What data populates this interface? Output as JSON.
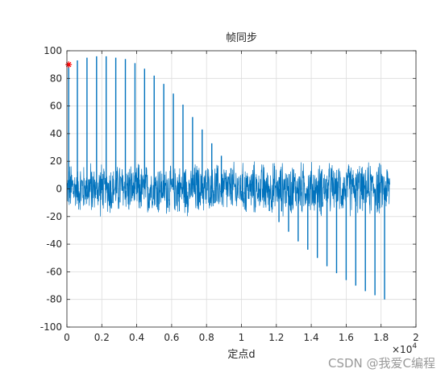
{
  "chart_data": {
    "type": "line",
    "title": "帧同步",
    "xlabel": "定点d",
    "ylabel": "",
    "x_exponent_label": "×10",
    "x_exponent_power": "4",
    "xlim": [
      0,
      20000
    ],
    "ylim": [
      -100,
      100
    ],
    "x_ticks": [
      "0",
      "0.2",
      "0.4",
      "0.6",
      "0.8",
      "1",
      "1.2",
      "1.4",
      "1.6",
      "1.8",
      "2"
    ],
    "y_ticks": [
      "100",
      "80",
      "60",
      "40",
      "20",
      "0",
      "-20",
      "-40",
      "-60",
      "-80",
      "-100"
    ],
    "grid": true,
    "line_color": "#0072bd",
    "marker_color": "#ff0000",
    "noise_band": {
      "x_start": 0,
      "x_end": 18500,
      "amplitude": 22
    },
    "series": [
      {
        "values_description": "sync correlation peaks",
        "peaks": [
          {
            "x": 100,
            "y": 90
          },
          {
            "x": 600,
            "y": 93
          },
          {
            "x": 1150,
            "y": 95
          },
          {
            "x": 1700,
            "y": 96
          },
          {
            "x": 2250,
            "y": 96
          },
          {
            "x": 2800,
            "y": 95
          },
          {
            "x": 3350,
            "y": 94
          },
          {
            "x": 3900,
            "y": 91
          },
          {
            "x": 4450,
            "y": 87
          },
          {
            "x": 5000,
            "y": 82
          },
          {
            "x": 5550,
            "y": 76
          },
          {
            "x": 6100,
            "y": 69
          },
          {
            "x": 6650,
            "y": 61
          },
          {
            "x": 7200,
            "y": 52
          },
          {
            "x": 7750,
            "y": 43
          },
          {
            "x": 8300,
            "y": 33
          },
          {
            "x": 8850,
            "y": 24
          },
          {
            "x": 9400,
            "y": 15
          },
          {
            "x": 9950,
            "y": 8
          },
          {
            "x": 10500,
            "y": 0
          },
          {
            "x": 11050,
            "y": -8
          },
          {
            "x": 11600,
            "y": -16
          },
          {
            "x": 12150,
            "y": -24
          },
          {
            "x": 12700,
            "y": -31
          },
          {
            "x": 13250,
            "y": -38
          },
          {
            "x": 13800,
            "y": -44
          },
          {
            "x": 14350,
            "y": -50
          },
          {
            "x": 14900,
            "y": -56
          },
          {
            "x": 15450,
            "y": -61
          },
          {
            "x": 16000,
            "y": -66
          },
          {
            "x": 16550,
            "y": -70
          },
          {
            "x": 17100,
            "y": -74
          },
          {
            "x": 17650,
            "y": -77
          },
          {
            "x": 18200,
            "y": -80
          }
        ]
      }
    ],
    "marker": {
      "x": 100,
      "y": 90,
      "symbol": "*"
    }
  },
  "watermark": "CSDN @我爱C编程"
}
